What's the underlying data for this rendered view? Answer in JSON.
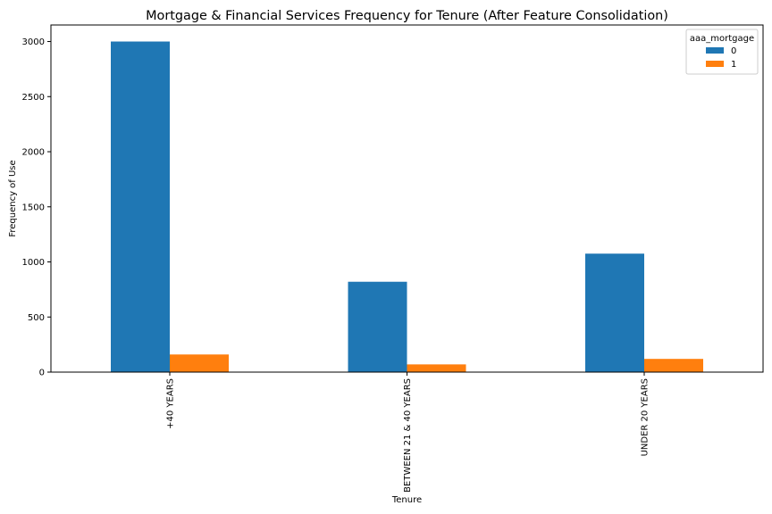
{
  "chart_data": {
    "type": "bar",
    "title": "Mortgage & Financial Services Frequency for Tenure (After Feature Consolidation)",
    "xlabel": "Tenure",
    "ylabel": "Frequency of Use",
    "categories": [
      "+40 YEARS",
      "BETWEEN 21 & 40 YEARS",
      "UNDER 20 YEARS"
    ],
    "series": [
      {
        "name": "0",
        "values": [
          3000,
          820,
          1075
        ],
        "color": "#1f77b4"
      },
      {
        "name": "1",
        "values": [
          160,
          70,
          120
        ],
        "color": "#ff7f0e"
      }
    ],
    "ylim": [
      0,
      3150
    ],
    "yticks": [
      0,
      500,
      1000,
      1500,
      2000,
      2500,
      3000
    ],
    "legend": {
      "title": "aaa_mortgage",
      "placement": "top-right"
    },
    "grid": false
  }
}
